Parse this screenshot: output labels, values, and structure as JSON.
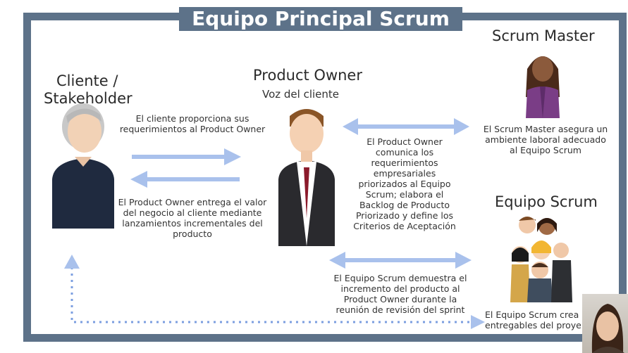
{
  "title": "Equipo Principal Scrum",
  "roles": {
    "client": "Cliente / Stakeholder",
    "client_line1": "Cliente /",
    "client_line2": "Stakeholder",
    "product_owner": "Product Owner",
    "product_owner_sub": "Voz del cliente",
    "scrum_master": "Scrum Master",
    "scrum_team": "Equipo Scrum"
  },
  "descriptions": {
    "client_to_po_1": "El cliente proporciona sus",
    "client_to_po_2": "requerimientos al Product Owner",
    "po_to_client_1": "El Product Owner entrega el valor",
    "po_to_client_2": "del negocio al cliente mediante",
    "po_to_client_3": "lanzamientos incrementales del",
    "po_to_client_4": "producto",
    "po_role_1": "El Product Owner",
    "po_role_2": "comunica los",
    "po_role_3": "requerimientos",
    "po_role_4": "empresariales",
    "po_role_5": "priorizados al Equipo",
    "po_role_6": "Scrum; elabora el",
    "po_role_7": "Backlog de Producto",
    "po_role_8": "Priorizado y define los",
    "po_role_9": "Criterios de Aceptación",
    "sm_1": "El Scrum Master asegura un",
    "sm_2": "ambiente laboral adecuado",
    "sm_3": "al Equipo Scrum",
    "team_demo_1": "El Equipo Scrum demuestra el",
    "team_demo_2": "incremento del producto al",
    "team_demo_3": "Product Owner durante la",
    "team_demo_4": "reunión de revisión del sprint",
    "team_deliver_1": "El Equipo Scrum crea",
    "team_deliver_2": "entregables del proye"
  },
  "colors": {
    "frame": "#5d7289",
    "arrow": "#a9c1ec",
    "dotted_arrow": "#7c9fe0"
  }
}
